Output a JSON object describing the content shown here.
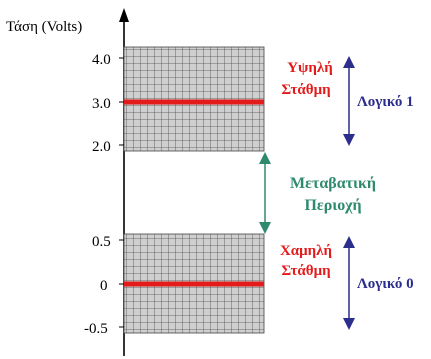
{
  "axis": {
    "label": "Τάση (Volts)"
  },
  "ticks": {
    "t_4_0": "4.0",
    "t_3_0": "3.0",
    "t_2_0": "2.0",
    "t_0_5": "0.5",
    "t_0": "0",
    "t_neg_0_5": "-0.5"
  },
  "high": {
    "level_line1": "Υψηλή",
    "level_line2": "Στάθμη",
    "logic": "Λογικό 1"
  },
  "transition": {
    "line1": "Μεταβατική",
    "line2": "Περιοχή"
  },
  "low": {
    "level_line1": "Χαμηλή",
    "level_line2": "Στάθμη",
    "logic": "Λογικό 0"
  },
  "colors": {
    "level_red": "#e41b1b",
    "logic_blue": "#2b2e8c",
    "transition_green": "#2e8a6e",
    "grid_fill": "#cfcfcf",
    "grid_line": "#555555",
    "axis": "#000000"
  }
}
